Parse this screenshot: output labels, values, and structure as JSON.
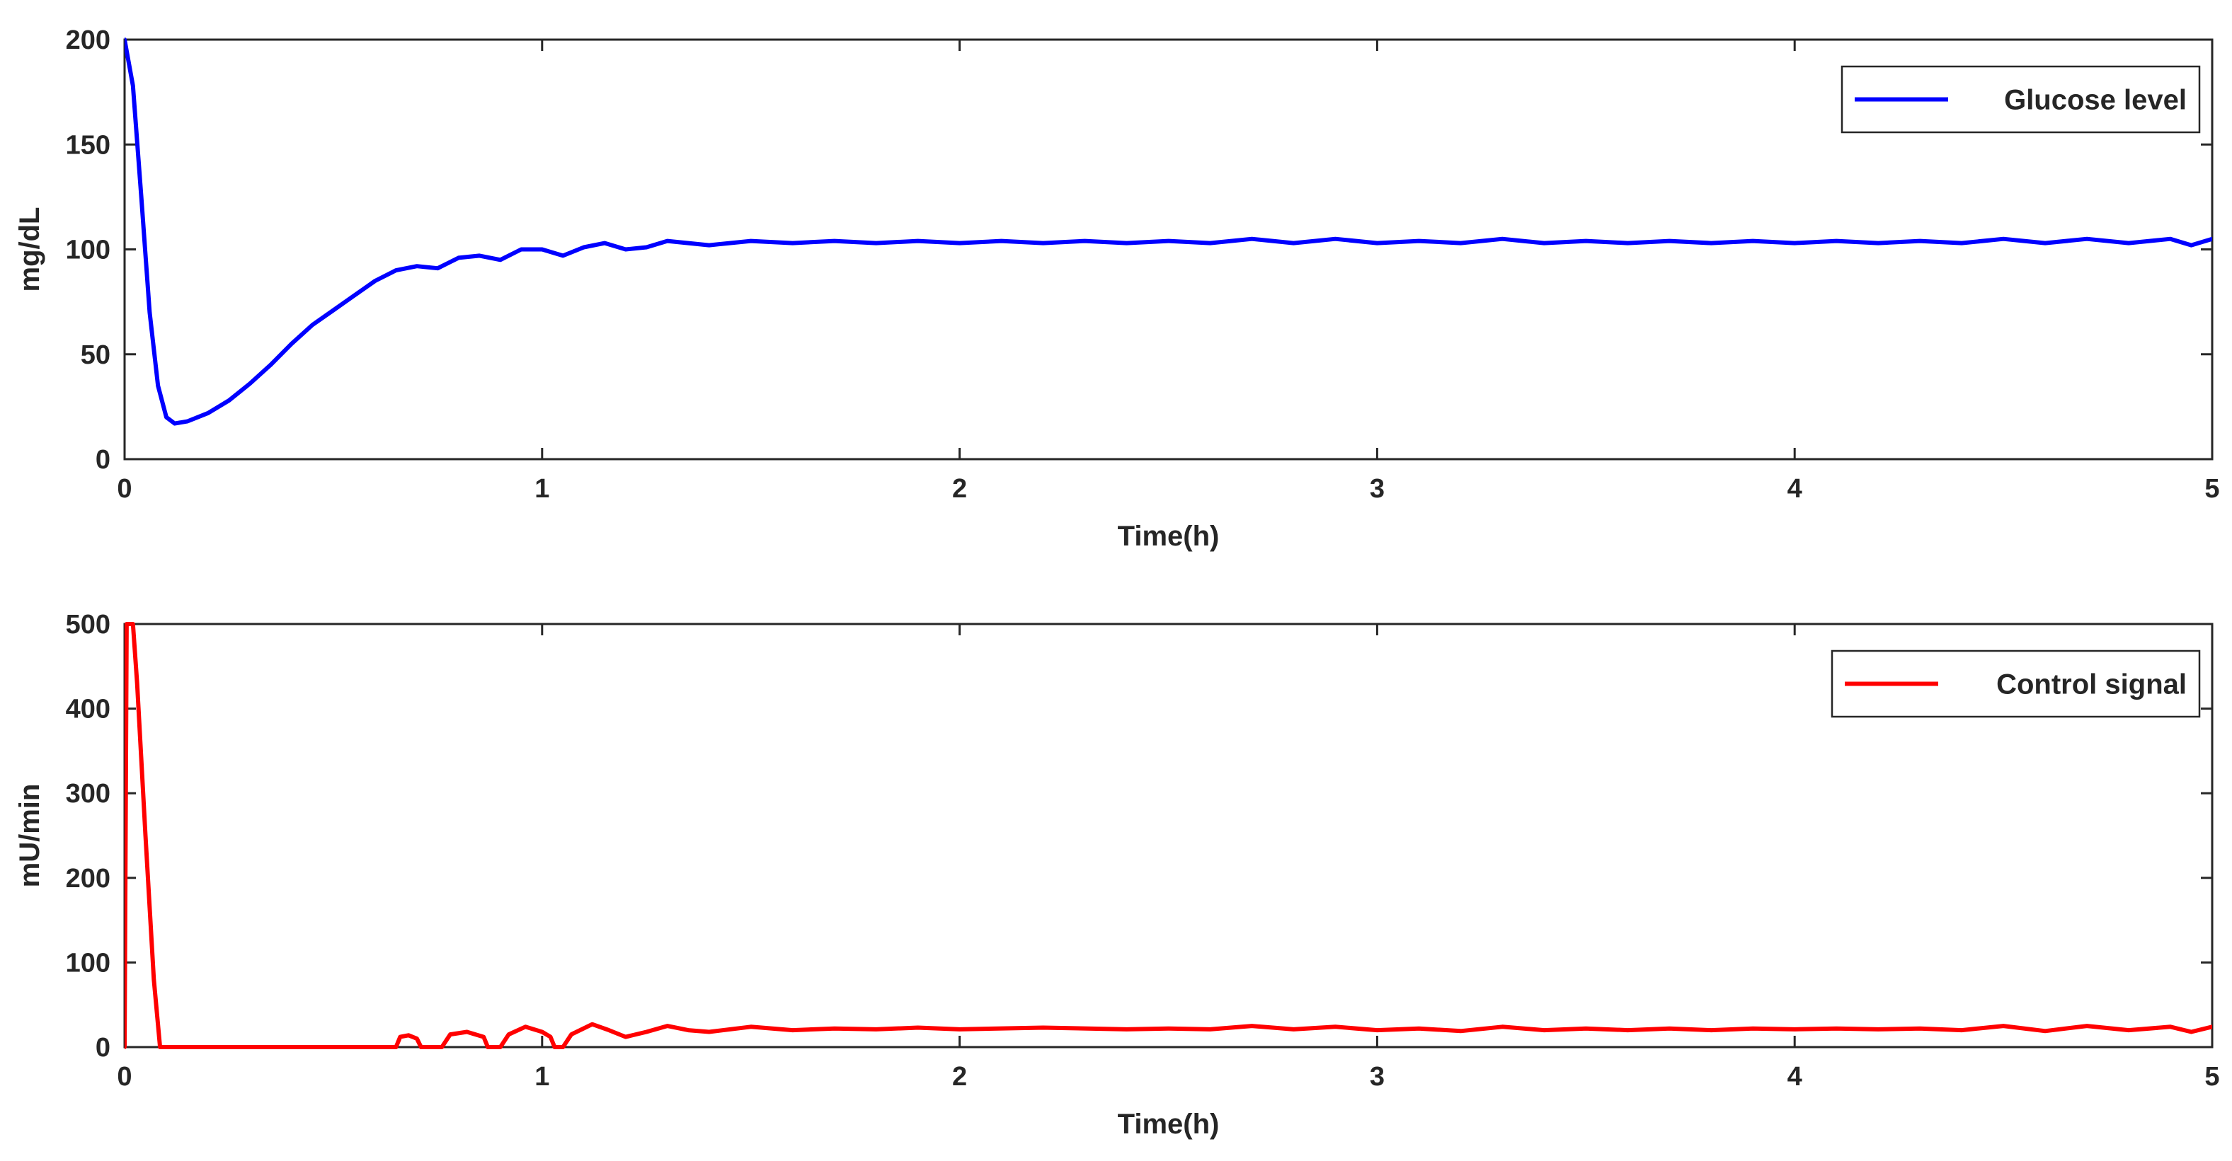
{
  "chart_data": [
    {
      "type": "line",
      "title": "",
      "xlabel": "Time(h)",
      "ylabel": "mg/dL",
      "xlim": [
        0,
        5
      ],
      "ylim": [
        0,
        200
      ],
      "xticks": [
        "0",
        "1",
        "2",
        "3",
        "4",
        "5"
      ],
      "yticks": [
        "0",
        "50",
        "100",
        "150",
        "200"
      ],
      "grid": false,
      "legend_position": "top-right",
      "series": [
        {
          "name": "Glucose level",
          "color": "#0000ff",
          "points": [
            [
              0,
              200
            ],
            [
              0.02,
              178
            ],
            [
              0.04,
              125
            ],
            [
              0.06,
              70
            ],
            [
              0.08,
              35
            ],
            [
              0.1,
              20
            ],
            [
              0.12,
              17
            ],
            [
              0.15,
              18
            ],
            [
              0.2,
              22
            ],
            [
              0.25,
              28
            ],
            [
              0.3,
              36
            ],
            [
              0.35,
              45
            ],
            [
              0.4,
              55
            ],
            [
              0.45,
              64
            ],
            [
              0.5,
              71
            ],
            [
              0.55,
              78
            ],
            [
              0.6,
              85
            ],
            [
              0.65,
              90
            ],
            [
              0.7,
              92
            ],
            [
              0.75,
              91
            ],
            [
              0.8,
              96
            ],
            [
              0.85,
              97
            ],
            [
              0.9,
              95
            ],
            [
              0.95,
              100
            ],
            [
              1.0,
              100
            ],
            [
              1.05,
              97
            ],
            [
              1.1,
              101
            ],
            [
              1.15,
              103
            ],
            [
              1.2,
              100
            ],
            [
              1.25,
              101
            ],
            [
              1.3,
              104
            ],
            [
              1.4,
              102
            ],
            [
              1.5,
              104
            ],
            [
              1.6,
              103
            ],
            [
              1.7,
              104
            ],
            [
              1.8,
              103
            ],
            [
              1.9,
              104
            ],
            [
              2.0,
              103
            ],
            [
              2.1,
              104
            ],
            [
              2.2,
              103
            ],
            [
              2.3,
              104
            ],
            [
              2.4,
              103
            ],
            [
              2.5,
              104
            ],
            [
              2.6,
              103
            ],
            [
              2.7,
              105
            ],
            [
              2.8,
              103
            ],
            [
              2.9,
              105
            ],
            [
              3.0,
              103
            ],
            [
              3.1,
              104
            ],
            [
              3.2,
              103
            ],
            [
              3.3,
              105
            ],
            [
              3.4,
              103
            ],
            [
              3.5,
              104
            ],
            [
              3.6,
              103
            ],
            [
              3.7,
              104
            ],
            [
              3.8,
              103
            ],
            [
              3.9,
              104
            ],
            [
              4.0,
              103
            ],
            [
              4.1,
              104
            ],
            [
              4.2,
              103
            ],
            [
              4.3,
              104
            ],
            [
              4.4,
              103
            ],
            [
              4.5,
              105
            ],
            [
              4.6,
              103
            ],
            [
              4.7,
              105
            ],
            [
              4.8,
              103
            ],
            [
              4.9,
              105
            ],
            [
              4.95,
              102
            ],
            [
              5.0,
              105
            ]
          ]
        }
      ]
    },
    {
      "type": "line",
      "title": "",
      "xlabel": "Time(h)",
      "ylabel": "mU/min",
      "xlim": [
        0,
        5
      ],
      "ylim": [
        0,
        500
      ],
      "xticks": [
        "0",
        "1",
        "2",
        "3",
        "4",
        "5"
      ],
      "yticks": [
        "0",
        "100",
        "200",
        "300",
        "400",
        "500"
      ],
      "grid": false,
      "legend_position": "top-right",
      "series": [
        {
          "name": "Control signal",
          "color": "#ff0000",
          "points": [
            [
              0,
              0
            ],
            [
              0.005,
              500
            ],
            [
              0.02,
              500
            ],
            [
              0.03,
              430
            ],
            [
              0.05,
              250
            ],
            [
              0.07,
              80
            ],
            [
              0.085,
              0
            ],
            [
              0.2,
              0
            ],
            [
              0.4,
              0
            ],
            [
              0.65,
              0
            ],
            [
              0.66,
              12
            ],
            [
              0.68,
              14
            ],
            [
              0.7,
              10
            ],
            [
              0.71,
              0
            ],
            [
              0.76,
              0
            ],
            [
              0.78,
              15
            ],
            [
              0.82,
              18
            ],
            [
              0.86,
              12
            ],
            [
              0.87,
              0
            ],
            [
              0.9,
              0
            ],
            [
              0.92,
              15
            ],
            [
              0.96,
              24
            ],
            [
              1.0,
              18
            ],
            [
              1.02,
              12
            ],
            [
              1.03,
              0
            ],
            [
              1.05,
              0
            ],
            [
              1.07,
              15
            ],
            [
              1.12,
              27
            ],
            [
              1.16,
              20
            ],
            [
              1.2,
              12
            ],
            [
              1.25,
              18
            ],
            [
              1.3,
              25
            ],
            [
              1.35,
              20
            ],
            [
              1.4,
              18
            ],
            [
              1.5,
              24
            ],
            [
              1.6,
              20
            ],
            [
              1.7,
              22
            ],
            [
              1.8,
              21
            ],
            [
              1.9,
              23
            ],
            [
              2.0,
              21
            ],
            [
              2.2,
              23
            ],
            [
              2.4,
              21
            ],
            [
              2.5,
              22
            ],
            [
              2.6,
              21
            ],
            [
              2.7,
              25
            ],
            [
              2.8,
              21
            ],
            [
              2.9,
              24
            ],
            [
              3.0,
              20
            ],
            [
              3.1,
              22
            ],
            [
              3.2,
              19
            ],
            [
              3.3,
              24
            ],
            [
              3.4,
              20
            ],
            [
              3.5,
              22
            ],
            [
              3.6,
              20
            ],
            [
              3.7,
              22
            ],
            [
              3.8,
              20
            ],
            [
              3.9,
              22
            ],
            [
              4.0,
              21
            ],
            [
              4.1,
              22
            ],
            [
              4.2,
              21
            ],
            [
              4.3,
              22
            ],
            [
              4.4,
              20
            ],
            [
              4.5,
              25
            ],
            [
              4.6,
              19
            ],
            [
              4.7,
              25
            ],
            [
              4.8,
              20
            ],
            [
              4.9,
              24
            ],
            [
              4.95,
              18
            ],
            [
              5.0,
              24
            ]
          ]
        }
      ]
    }
  ]
}
